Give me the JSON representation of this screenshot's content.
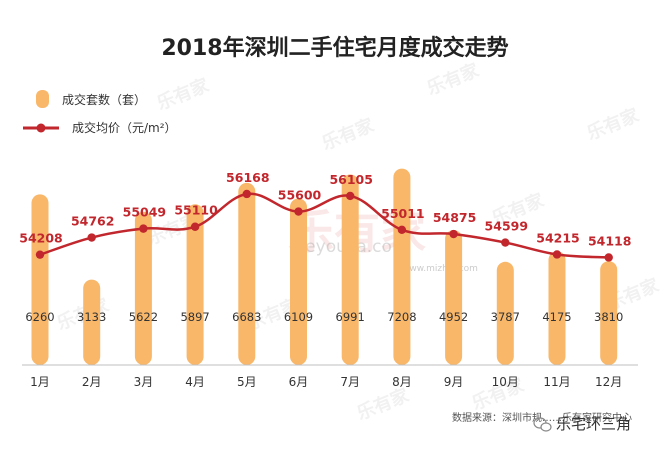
{
  "chart_data": {
    "type": "bar+line",
    "title": "2018年深圳二手住宅月度成交走势",
    "categories": [
      "1月",
      "2月",
      "3月",
      "4月",
      "5月",
      "6月",
      "7月",
      "8月",
      "9月",
      "10月",
      "11月",
      "12月"
    ],
    "series": [
      {
        "name": "成交套数（套）",
        "type": "bar",
        "color": "#F9B769",
        "values": [
          6260,
          3133,
          5622,
          5897,
          6683,
          6109,
          6991,
          7208,
          4952,
          3787,
          4175,
          3810
        ],
        "ylim": [
          0,
          8000
        ]
      },
      {
        "name": "成交均价（元/m²）",
        "type": "line",
        "color": "#C1272D",
        "values": [
          54208,
          54762,
          55049,
          55110,
          56168,
          55600,
          56105,
          55011,
          54875,
          54599,
          54215,
          54118
        ],
        "ylim": [
          48000,
          57200
        ]
      }
    ],
    "legend_position": "top-left",
    "grid": false
  },
  "source_note": "数据来源：深圳市规……乐有家研究中心",
  "watermark_brand": "乐有家",
  "watermark_url": "Leyoujia.com",
  "watermark_site": "www.mizhai.com",
  "account_name": "乐宅环三角",
  "colors": {
    "bar": "#F9B769",
    "line": "#C1272D",
    "label_line": "#C1272D",
    "text": "#333333",
    "axis": "#BFBFBF"
  }
}
